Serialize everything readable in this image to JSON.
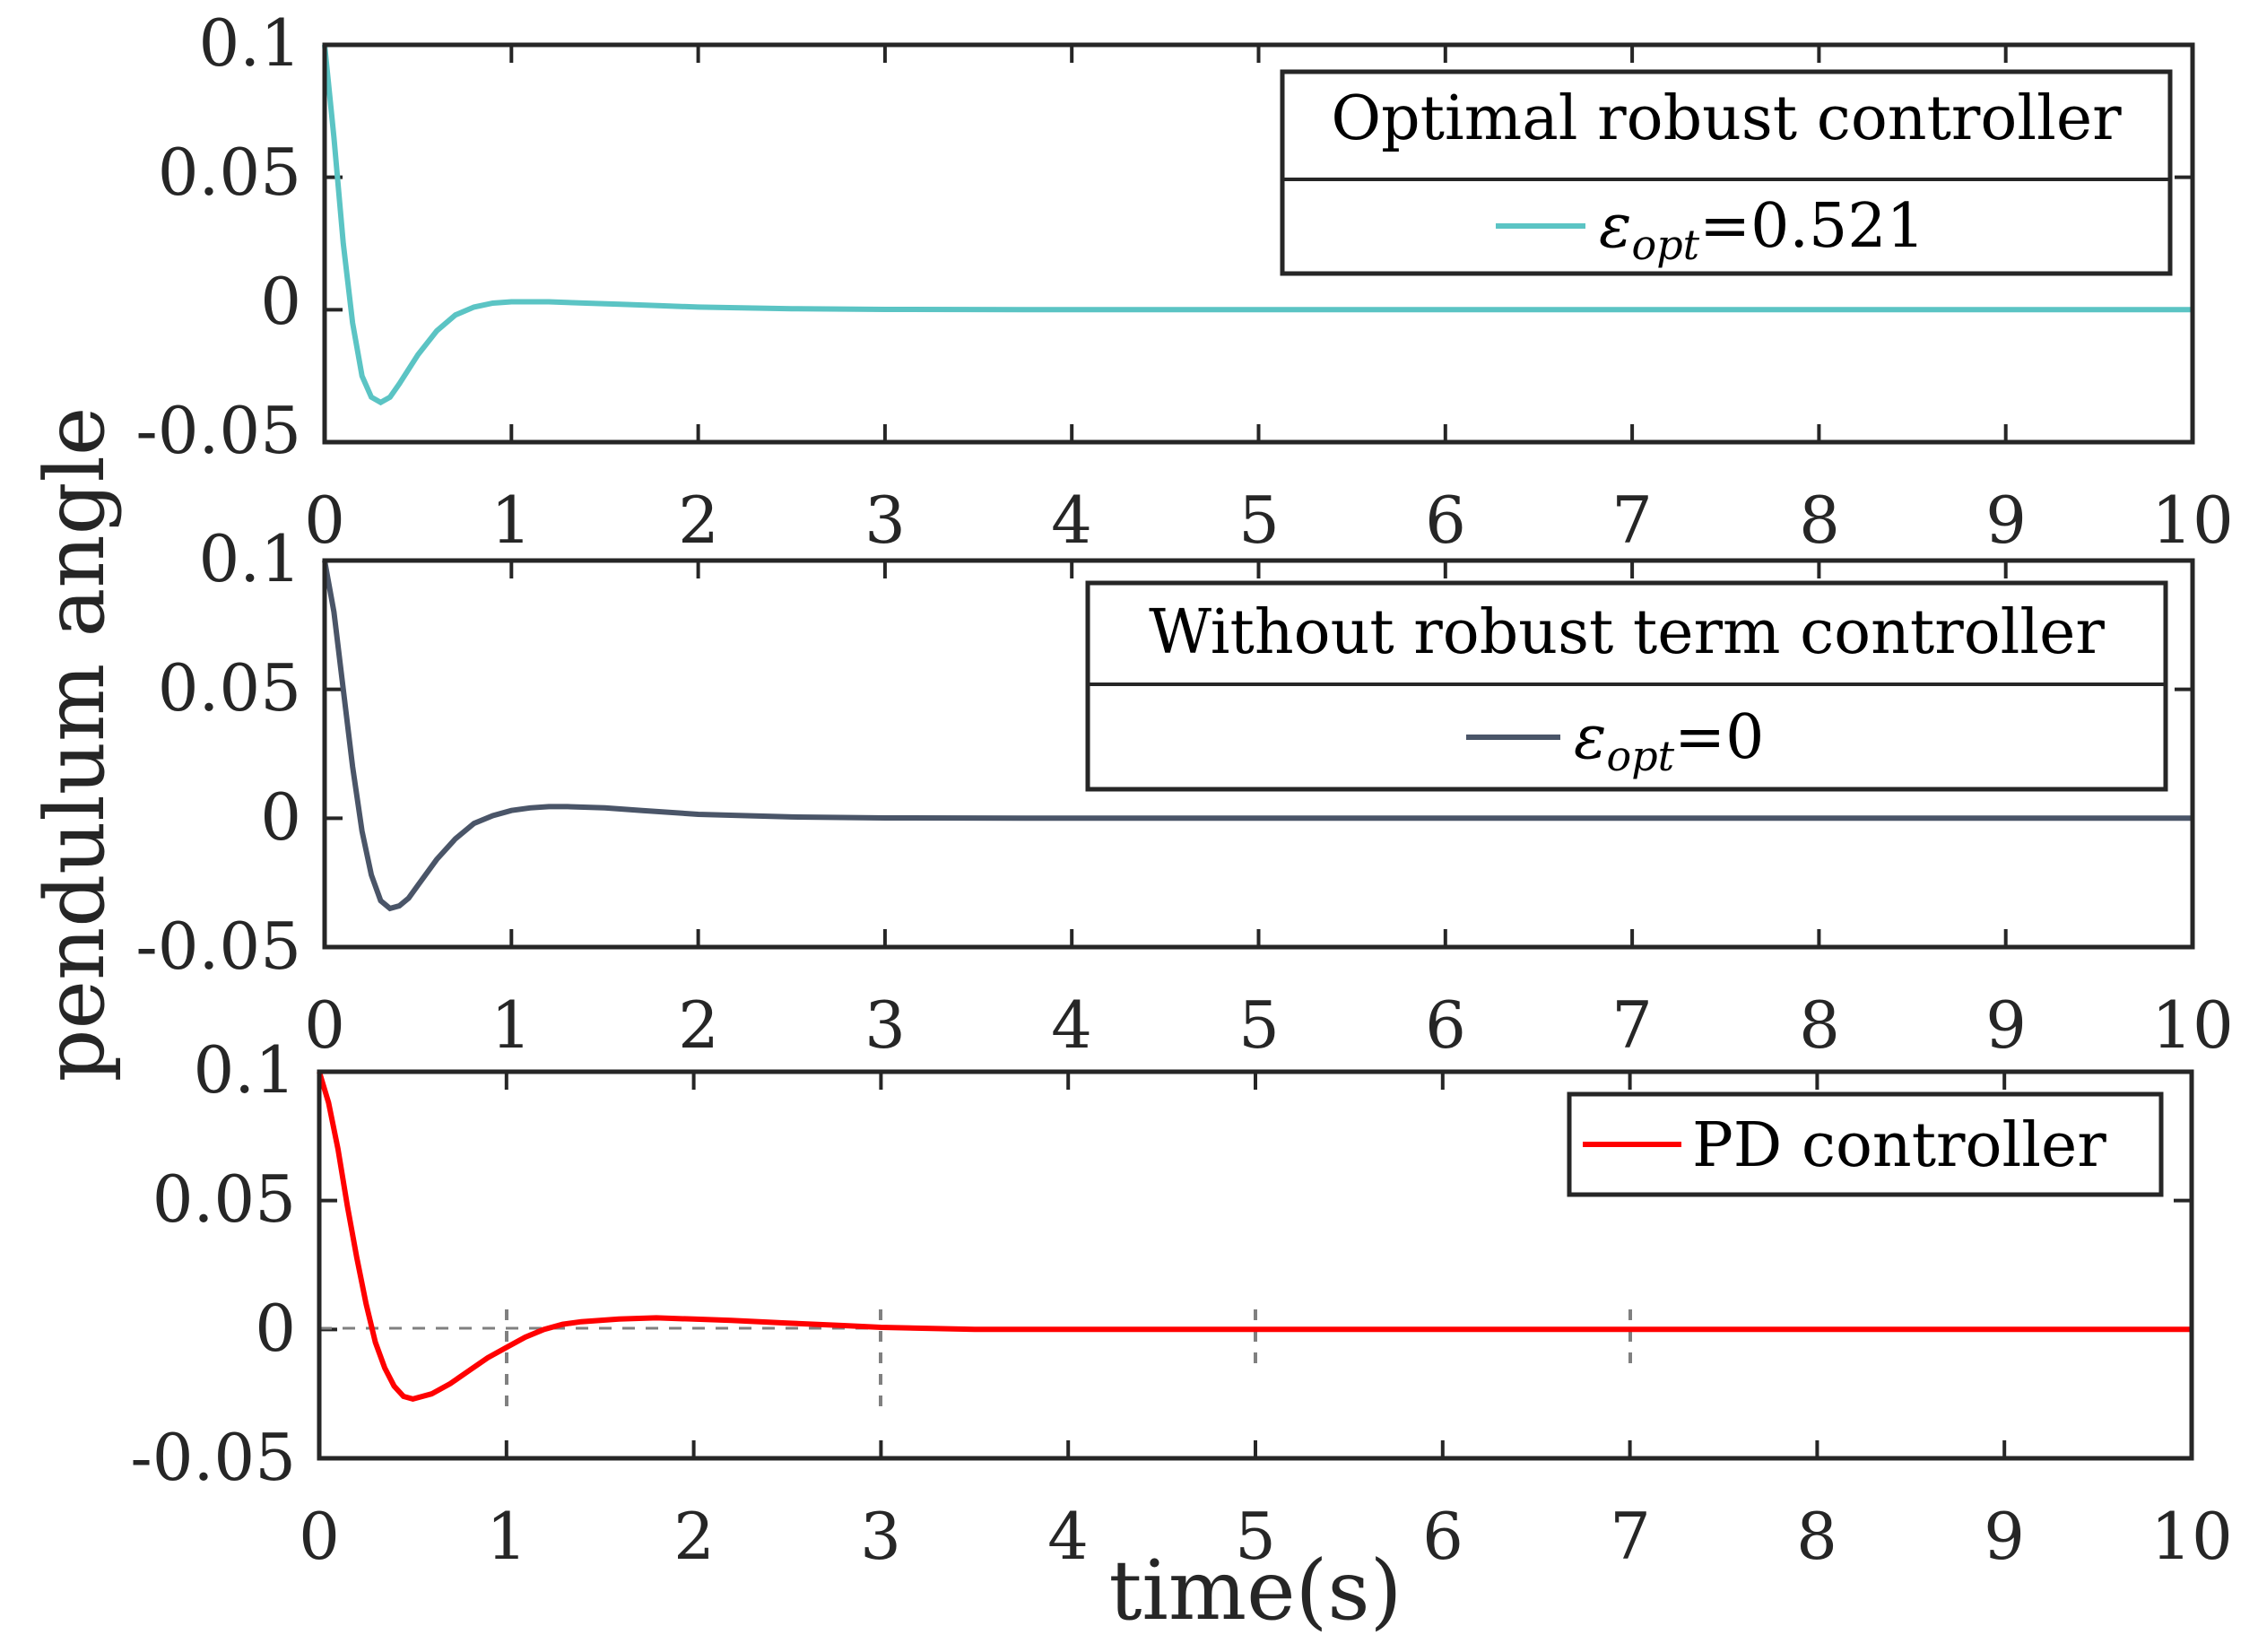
{
  "chart_data": [
    {
      "type": "line",
      "panel": "top",
      "xlim": [
        0,
        10
      ],
      "ylim": [
        -0.05,
        0.1
      ],
      "x_ticks": [
        "0",
        "1",
        "2",
        "3",
        "4",
        "5",
        "6",
        "7",
        "8",
        "9",
        "10"
      ],
      "y_ticks": [
        "0.1",
        "0.05",
        "0",
        "-0.05"
      ],
      "legend": {
        "title": "Optimal robust controller",
        "entry_symbol": "ε",
        "entry_subscript": "opt",
        "entry_value": "=0.521",
        "placement": "top-right"
      },
      "series": [
        {
          "name": "ε_opt=0.521",
          "color": "#5bc4c4",
          "x": [
            0,
            0.05,
            0.1,
            0.15,
            0.2,
            0.25,
            0.3,
            0.35,
            0.4,
            0.5,
            0.6,
            0.7,
            0.8,
            0.9,
            1.0,
            1.2,
            1.4,
            1.6,
            1.8,
            2.0,
            2.5,
            3.0,
            4.0,
            10.0
          ],
          "y": [
            0.1,
            0.065,
            0.025,
            -0.005,
            -0.025,
            -0.033,
            -0.035,
            -0.033,
            -0.028,
            -0.017,
            -0.008,
            -0.002,
            0.001,
            0.0025,
            0.003,
            0.003,
            0.0025,
            0.002,
            0.0015,
            0.001,
            0.0004,
            0.0001,
            0,
            0
          ]
        }
      ]
    },
    {
      "type": "line",
      "panel": "middle",
      "xlim": [
        0,
        10
      ],
      "ylim": [
        -0.05,
        0.1
      ],
      "x_ticks": [
        "0",
        "1",
        "2",
        "3",
        "4",
        "5",
        "6",
        "7",
        "8",
        "9",
        "10"
      ],
      "y_ticks": [
        "0.1",
        "0.05",
        "0",
        "-0.05"
      ],
      "legend": {
        "title": "Without robust term controller",
        "entry_symbol": "ε",
        "entry_subscript": "opt",
        "entry_value": "=0",
        "placement": "top-right"
      },
      "series": [
        {
          "name": "ε_opt=0",
          "color": "#4a5568",
          "x": [
            0,
            0.05,
            0.1,
            0.15,
            0.2,
            0.25,
            0.3,
            0.35,
            0.4,
            0.45,
            0.5,
            0.6,
            0.7,
            0.8,
            0.9,
            1.0,
            1.1,
            1.2,
            1.3,
            1.5,
            1.7,
            2.0,
            2.5,
            3.0,
            4.0,
            10.0
          ],
          "y": [
            0.1,
            0.08,
            0.05,
            0.02,
            -0.005,
            -0.022,
            -0.032,
            -0.035,
            -0.034,
            -0.031,
            -0.026,
            -0.016,
            -0.008,
            -0.002,
            0.001,
            0.003,
            0.004,
            0.0045,
            0.0045,
            0.004,
            0.003,
            0.0015,
            0.0005,
            0.0001,
            0,
            0
          ]
        }
      ]
    },
    {
      "type": "line",
      "panel": "bottom",
      "xlim": [
        0,
        10
      ],
      "ylim": [
        -0.05,
        0.1
      ],
      "x_ticks": [
        "0",
        "1",
        "2",
        "3",
        "4",
        "5",
        "6",
        "7",
        "8",
        "9",
        "10"
      ],
      "y_ticks": [
        "0.1",
        "0.05",
        "0",
        "-0.05"
      ],
      "legend": {
        "title": "",
        "entry_label": "PD controller",
        "placement": "top-right"
      },
      "series": [
        {
          "name": "PD controller",
          "color": "#ff0000",
          "x": [
            0,
            0.05,
            0.1,
            0.15,
            0.2,
            0.25,
            0.3,
            0.35,
            0.4,
            0.45,
            0.5,
            0.6,
            0.7,
            0.8,
            0.9,
            1.0,
            1.1,
            1.2,
            1.3,
            1.4,
            1.6,
            1.8,
            2.0,
            2.2,
            2.5,
            2.8,
            3.0,
            3.5,
            10.0
          ],
          "y": [
            0.1,
            0.088,
            0.07,
            0.048,
            0.028,
            0.01,
            -0.005,
            -0.015,
            -0.022,
            -0.026,
            -0.027,
            -0.025,
            -0.021,
            -0.016,
            -0.011,
            -0.007,
            -0.003,
            0,
            0.002,
            0.003,
            0.004,
            0.0045,
            0.004,
            0.0035,
            0.0025,
            0.0015,
            0.0008,
            0,
            0
          ]
        }
      ]
    }
  ],
  "shared": {
    "ylabel": "pendulum angle",
    "xlabel": "time(s)"
  },
  "colors": {
    "axis": "#262626",
    "grid_marks": "#808080"
  }
}
